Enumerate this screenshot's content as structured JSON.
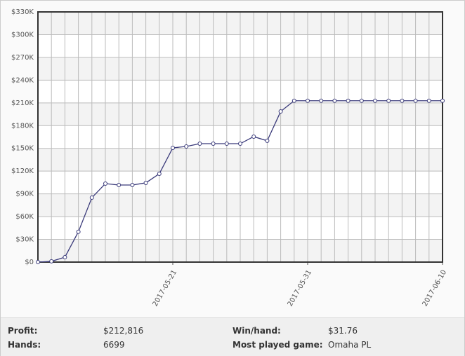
{
  "chart_data": {
    "type": "line",
    "x": [
      "2017-05-11",
      "2017-05-12",
      "2017-05-13",
      "2017-05-14",
      "2017-05-15",
      "2017-05-16",
      "2017-05-17",
      "2017-05-18",
      "2017-05-19",
      "2017-05-20",
      "2017-05-21",
      "2017-05-22",
      "2017-05-23",
      "2017-05-24",
      "2017-05-25",
      "2017-05-26",
      "2017-05-27",
      "2017-05-28",
      "2017-05-29",
      "2017-05-30",
      "2017-05-31",
      "2017-06-01",
      "2017-06-02",
      "2017-06-03",
      "2017-06-04",
      "2017-06-05",
      "2017-06-06",
      "2017-06-07",
      "2017-06-08",
      "2017-06-09",
      "2017-06-10"
    ],
    "values": [
      0,
      1000,
      6500,
      40000,
      85000,
      103500,
      101700,
      101700,
      104500,
      116500,
      150700,
      152500,
      156200,
      156200,
      156200,
      156200,
      165500,
      160000,
      198700,
      212816,
      212816,
      212816,
      212816,
      212816,
      212816,
      212816,
      212816,
      212816,
      212816,
      212816,
      212816
    ],
    "color": "#3a3a7a",
    "xlim": [
      "2017-05-11",
      "2017-06-10"
    ],
    "xticks": [
      "2017-05-21",
      "2017-05-31",
      "2017-06-10"
    ],
    "ylim": [
      0,
      330000
    ],
    "yticks": [
      {
        "value": 0,
        "label": "$0"
      },
      {
        "value": 30000,
        "label": "$30K"
      },
      {
        "value": 60000,
        "label": "$60K"
      },
      {
        "value": 90000,
        "label": "$90K"
      },
      {
        "value": 120000,
        "label": "$120K"
      },
      {
        "value": 150000,
        "label": "$150K"
      },
      {
        "value": 180000,
        "label": "$180K"
      },
      {
        "value": 210000,
        "label": "$210K"
      },
      {
        "value": 240000,
        "label": "$240K"
      },
      {
        "value": 270000,
        "label": "$270K"
      },
      {
        "value": 300000,
        "label": "$300K"
      },
      {
        "value": 330000,
        "label": "$330K"
      }
    ],
    "grid": true
  },
  "stats": [
    {
      "label": "Profit:",
      "value": "$212,816"
    },
    {
      "label": "Win/hand:",
      "value": "$31.76"
    },
    {
      "label": "Hands:",
      "value": "6699"
    },
    {
      "label": "Most played game:",
      "value": "Omaha PL"
    }
  ]
}
